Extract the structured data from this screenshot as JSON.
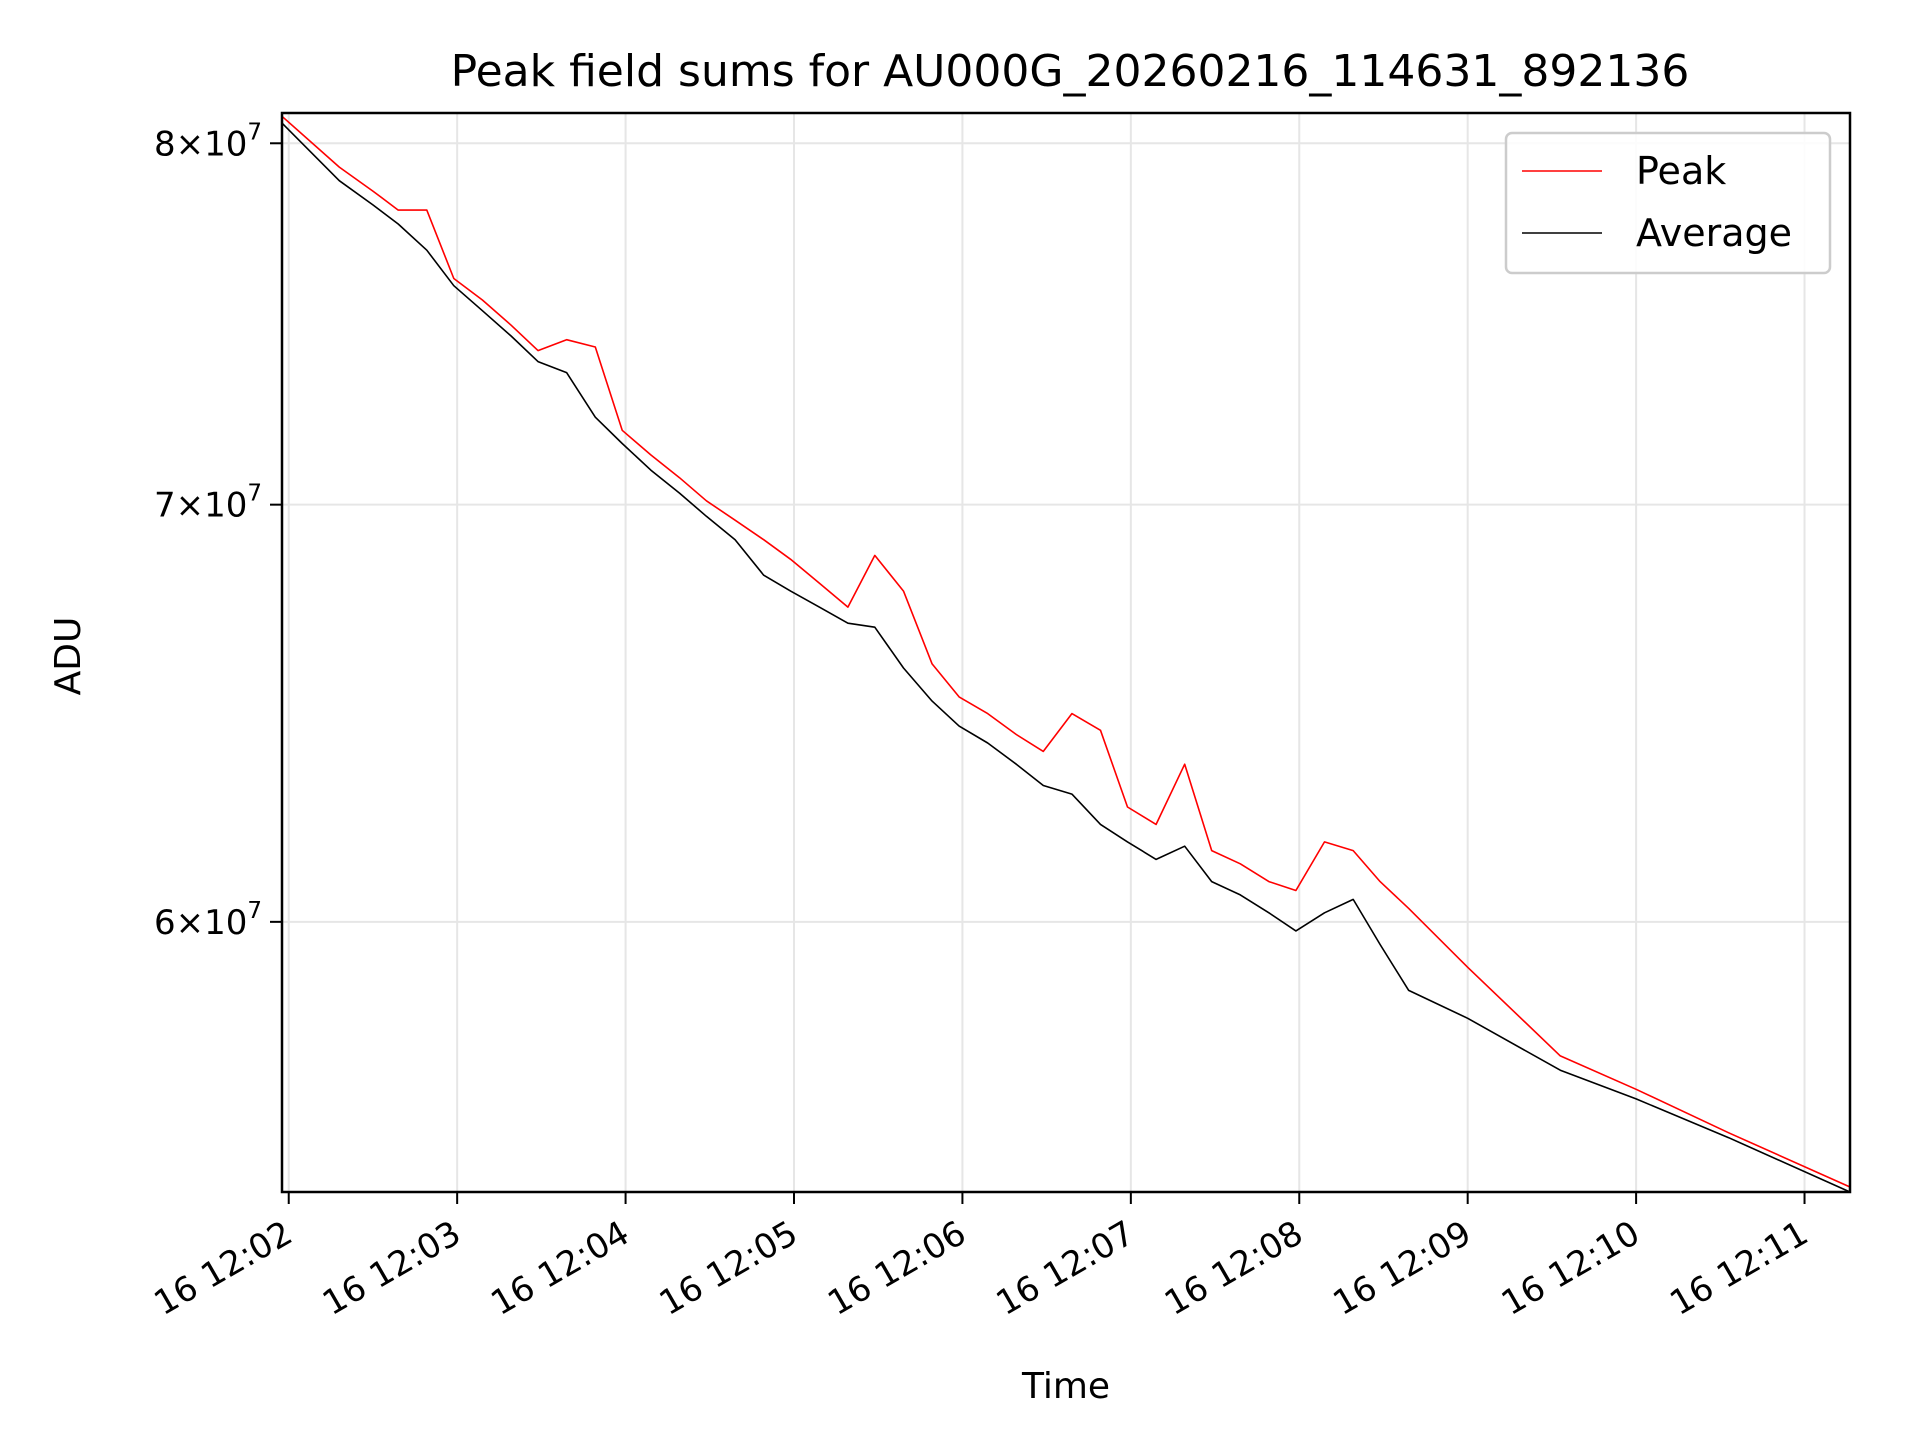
{
  "chart_data": {
    "type": "line",
    "title": "Peak field sums for AU000G_20260216_114631_892136",
    "xlabel": "Time",
    "ylabel": "ADU",
    "yscale": "log",
    "ylim": [
      54300000,
      80900000
    ],
    "xlim": [
      -0.04,
      9.27
    ],
    "grid": true,
    "legend_position": "top-right",
    "x_ticks": [
      {
        "value": 0,
        "label": "16 12:02"
      },
      {
        "value": 1,
        "label": "16 12:03"
      },
      {
        "value": 2,
        "label": "16 12:04"
      },
      {
        "value": 3,
        "label": "16 12:05"
      },
      {
        "value": 4,
        "label": "16 12:06"
      },
      {
        "value": 5,
        "label": "16 12:07"
      },
      {
        "value": 6,
        "label": "16 12:08"
      },
      {
        "value": 7,
        "label": "16 12:09"
      },
      {
        "value": 8,
        "label": "16 12:10"
      },
      {
        "value": 9,
        "label": "16 12:11"
      }
    ],
    "y_ticks": [
      {
        "value": 60000000,
        "mantissa": "6",
        "base": "10",
        "exp": "7"
      },
      {
        "value": 70000000,
        "mantissa": "7",
        "base": "10",
        "exp": "7"
      },
      {
        "value": 80000000,
        "mantissa": "8",
        "base": "10",
        "exp": "7"
      }
    ],
    "x_unit": "minutes after 16 12:02",
    "series": [
      {
        "name": "Peak",
        "color": "#ff0000",
        "points": [
          [
            -0.04,
            80800000
          ],
          [
            0.3,
            79300000
          ],
          [
            0.5,
            78600000
          ],
          [
            0.65,
            78050000
          ],
          [
            0.82,
            78050000
          ],
          [
            0.98,
            76100000
          ],
          [
            1.15,
            75500000
          ],
          [
            1.32,
            74800000
          ],
          [
            1.48,
            74100000
          ],
          [
            1.65,
            74400000
          ],
          [
            1.82,
            74200000
          ],
          [
            1.98,
            71950000
          ],
          [
            2.15,
            71300000
          ],
          [
            2.32,
            70700000
          ],
          [
            2.48,
            70100000
          ],
          [
            2.65,
            69600000
          ],
          [
            2.82,
            69100000
          ],
          [
            2.98,
            68600000
          ],
          [
            3.15,
            68000000
          ],
          [
            3.32,
            67400000
          ],
          [
            3.48,
            68700000
          ],
          [
            3.65,
            67800000
          ],
          [
            3.82,
            66000000
          ],
          [
            3.98,
            65200000
          ],
          [
            4.15,
            64800000
          ],
          [
            4.32,
            64300000
          ],
          [
            4.48,
            63900000
          ],
          [
            4.65,
            64800000
          ],
          [
            4.82,
            64400000
          ],
          [
            4.98,
            62600000
          ],
          [
            5.15,
            62200000
          ],
          [
            5.32,
            63600000
          ],
          [
            5.48,
            61600000
          ],
          [
            5.65,
            61300000
          ],
          [
            5.82,
            60900000
          ],
          [
            5.98,
            60700000
          ],
          [
            6.15,
            61800000
          ],
          [
            6.32,
            61600000
          ],
          [
            6.48,
            60900000
          ],
          [
            6.65,
            60300000
          ],
          [
            7.0,
            59000000
          ],
          [
            7.55,
            57100000
          ],
          [
            8.0,
            56400000
          ],
          [
            8.55,
            55500000
          ],
          [
            9.27,
            54400000
          ]
        ]
      },
      {
        "name": "Average",
        "color": "#000000",
        "points": [
          [
            -0.04,
            80600000
          ],
          [
            0.3,
            78900000
          ],
          [
            0.5,
            78200000
          ],
          [
            0.65,
            77650000
          ],
          [
            0.82,
            76900000
          ],
          [
            0.98,
            75900000
          ],
          [
            1.15,
            75200000
          ],
          [
            1.32,
            74500000
          ],
          [
            1.48,
            73800000
          ],
          [
            1.65,
            73500000
          ],
          [
            1.82,
            72300000
          ],
          [
            1.98,
            71600000
          ],
          [
            2.15,
            70900000
          ],
          [
            2.32,
            70300000
          ],
          [
            2.48,
            69700000
          ],
          [
            2.65,
            69100000
          ],
          [
            2.82,
            68200000
          ],
          [
            2.98,
            67800000
          ],
          [
            3.15,
            67400000
          ],
          [
            3.32,
            67000000
          ],
          [
            3.48,
            66900000
          ],
          [
            3.65,
            65900000
          ],
          [
            3.82,
            65100000
          ],
          [
            3.98,
            64500000
          ],
          [
            4.15,
            64100000
          ],
          [
            4.32,
            63600000
          ],
          [
            4.48,
            63100000
          ],
          [
            4.65,
            62900000
          ],
          [
            4.82,
            62200000
          ],
          [
            4.98,
            61800000
          ],
          [
            5.15,
            61400000
          ],
          [
            5.32,
            61700000
          ],
          [
            5.48,
            60900000
          ],
          [
            5.65,
            60600000
          ],
          [
            5.82,
            60200000
          ],
          [
            5.98,
            59800000
          ],
          [
            6.15,
            60200000
          ],
          [
            6.32,
            60500000
          ],
          [
            6.48,
            59500000
          ],
          [
            6.65,
            58500000
          ],
          [
            7.0,
            57900000
          ],
          [
            7.55,
            56800000
          ],
          [
            8.0,
            56200000
          ],
          [
            8.55,
            55400000
          ],
          [
            9.27,
            54300000
          ]
        ]
      }
    ]
  }
}
